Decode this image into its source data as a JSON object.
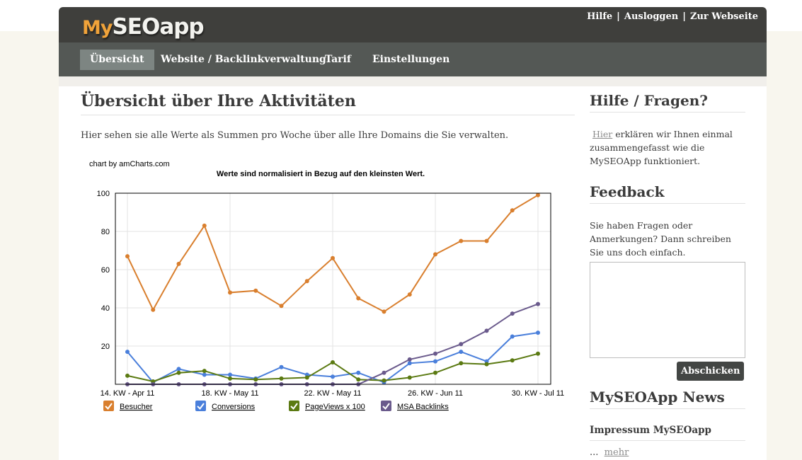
{
  "header": {
    "logo_my": "My",
    "logo_rest": "SEOapp",
    "links": [
      "Hilfe",
      "Ausloggen",
      "Zur Webseite"
    ],
    "separator": "|"
  },
  "nav": {
    "tabs": [
      {
        "label": "Übersicht",
        "active": true
      },
      {
        "label": "Website / Backlinkverwaltung",
        "active": false
      },
      {
        "label": "Tarif",
        "active": false
      },
      {
        "label": "Einstellungen",
        "active": false
      }
    ]
  },
  "main": {
    "title": "Übersicht über Ihre Aktivitäten",
    "intro": "Hier sehen sie alle Werte als Summen pro Woche über alle Ihre Domains die Sie verwalten."
  },
  "chart_data": {
    "type": "line",
    "credit": "chart by amCharts.com",
    "title": "Werte sind normalisiert in Bezug auf den kleinsten Wert.",
    "ylim": [
      0,
      100
    ],
    "yticks": [
      20,
      40,
      60,
      80,
      100
    ],
    "x_labels": [
      {
        "index": 0,
        "label": "14. KW - Apr 11"
      },
      {
        "index": 4,
        "label": "18. KW - May 11"
      },
      {
        "index": 8,
        "label": "22. KW - May 11"
      },
      {
        "index": 12,
        "label": "26. KW - Jun 11"
      },
      {
        "index": 16,
        "label": "30. KW - Jul 11"
      }
    ],
    "grid": true,
    "legend_position": "bottom",
    "series": [
      {
        "name": "Besucher",
        "color": "#d97f2e",
        "values": [
          67,
          39,
          63,
          83,
          48,
          49,
          41,
          54,
          66,
          45,
          38,
          47,
          68,
          75,
          75,
          91,
          99
        ]
      },
      {
        "name": "Conversions",
        "color": "#4a7fdb",
        "values": [
          17,
          1,
          8,
          5,
          5,
          3,
          9,
          5,
          4,
          6,
          1,
          11,
          12,
          17,
          12,
          25,
          27
        ]
      },
      {
        "name": "PageViews x 100",
        "color": "#5b7a12",
        "values": [
          4.5,
          1.5,
          6,
          7,
          3,
          2.5,
          3,
          3.5,
          11.5,
          2.5,
          2,
          3.5,
          6,
          11,
          10.5,
          12.5,
          16
        ]
      },
      {
        "name": "MSA Backlinks",
        "color": "#6a5a8c",
        "values": [
          0,
          0,
          0,
          0,
          0,
          0,
          0,
          0,
          0,
          0,
          6,
          13,
          16,
          21,
          28,
          37,
          42
        ]
      }
    ]
  },
  "sidebar": {
    "help_title": "Hilfe / Fragen?",
    "help_link": "Hier",
    "help_text": " erklären wir Ihnen einmal zusammengefasst wie die MySEOApp funktioniert.",
    "feedback_title": "Feedback",
    "feedback_text": "Sie haben Fragen oder Anmerkungen? Dann schreiben Sie uns doch einfach.",
    "feedback_value": "",
    "submit_label": "Abschicken",
    "news_title": "MySEOApp News",
    "news_item_title": "Impressum MySEOapp",
    "news_ellipsis": "...",
    "news_more": "mehr"
  }
}
